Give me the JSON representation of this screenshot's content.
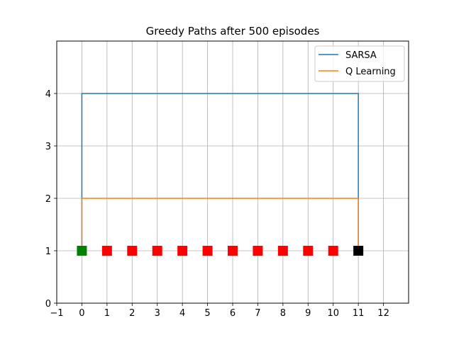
{
  "chart_data": {
    "type": "line",
    "title": "Greedy Paths after 500 episodes",
    "xlabel": "",
    "ylabel": "",
    "xlim": [
      -1,
      13
    ],
    "ylim": [
      0,
      5
    ],
    "xticks": [
      -1,
      0,
      1,
      2,
      3,
      4,
      5,
      6,
      7,
      8,
      9,
      10,
      11,
      12
    ],
    "yticks": [
      0,
      1,
      2,
      3,
      4
    ],
    "xtick_labels": [
      "−1",
      "0",
      "1",
      "2",
      "3",
      "4",
      "5",
      "6",
      "7",
      "8",
      "9",
      "10",
      "11",
      "12"
    ],
    "ytick_labels": [
      "0",
      "1",
      "2",
      "3",
      "4"
    ],
    "grid": true,
    "legend_position": "top-right",
    "series": [
      {
        "name": "SARSA",
        "color": "#1f77b4",
        "x": [
          0,
          0,
          11,
          11
        ],
        "y": [
          1,
          4,
          4,
          1
        ]
      },
      {
        "name": "Q Learning",
        "color": "#ff7f0e",
        "x": [
          0,
          0,
          11,
          11
        ],
        "y": [
          1,
          2,
          2,
          1
        ]
      }
    ],
    "markers": {
      "start": {
        "x": 0,
        "y": 1,
        "color": "#008000"
      },
      "goal": {
        "x": 11,
        "y": 1,
        "color": "#000000"
      },
      "cliff": {
        "x": [
          1,
          2,
          3,
          4,
          5,
          6,
          7,
          8,
          9,
          10
        ],
        "y": 1,
        "color": "#ff0000"
      }
    }
  }
}
